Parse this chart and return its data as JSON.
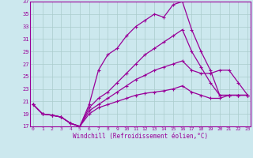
{
  "xlabel": "Windchill (Refroidissement éolien,°C)",
  "bg_color": "#cce8ee",
  "line_color": "#990099",
  "grid_color": "#aacccc",
  "xmin": 0,
  "xmax": 23,
  "ymin": 17,
  "ymax": 37,
  "yticks": [
    17,
    19,
    21,
    23,
    25,
    27,
    29,
    31,
    33,
    35,
    37
  ],
  "xticks": [
    0,
    1,
    2,
    3,
    4,
    5,
    6,
    7,
    8,
    9,
    10,
    11,
    12,
    13,
    14,
    15,
    16,
    17,
    18,
    19,
    20,
    21,
    22,
    23
  ],
  "curves": [
    {
      "x": [
        0,
        1,
        2,
        3,
        4,
        5,
        6,
        7,
        8,
        9,
        10,
        11,
        12,
        13,
        14,
        15,
        16,
        17,
        18,
        19,
        20,
        21,
        22,
        23
      ],
      "y": [
        20.5,
        19.0,
        18.8,
        18.5,
        17.5,
        17.0,
        20.5,
        26.0,
        28.5,
        29.5,
        31.5,
        33.0,
        34.0,
        35.0,
        34.5,
        36.5,
        37.0,
        32.5,
        29.0,
        26.0,
        22.0,
        22.0,
        22.0,
        22.0
      ],
      "marker_x": [
        0,
        1,
        2,
        3,
        4,
        5,
        6,
        7,
        8,
        9,
        10,
        11,
        12,
        13,
        14,
        15,
        16,
        17,
        18,
        19,
        20,
        21,
        22,
        23
      ]
    },
    {
      "x": [
        0,
        1,
        2,
        3,
        4,
        5,
        6,
        7,
        8,
        9,
        10,
        11,
        12,
        13,
        14,
        15,
        16,
        17,
        18,
        19,
        20,
        21,
        22,
        23
      ],
      "y": [
        20.5,
        19.0,
        18.8,
        18.5,
        17.5,
        17.0,
        20.0,
        21.5,
        22.5,
        24.0,
        25.5,
        27.0,
        28.5,
        29.5,
        30.5,
        31.5,
        32.5,
        29.0,
        26.5,
        24.0,
        22.0,
        22.0,
        22.0,
        22.0
      ],
      "marker_x": [
        0,
        1,
        2,
        3,
        4,
        5,
        6,
        7,
        8,
        9,
        10,
        11,
        12,
        13,
        14,
        15,
        16,
        17,
        18,
        19,
        20,
        21,
        22,
        23
      ]
    },
    {
      "x": [
        0,
        1,
        2,
        3,
        4,
        5,
        6,
        7,
        8,
        9,
        10,
        11,
        12,
        13,
        14,
        15,
        16,
        17,
        18,
        19,
        20,
        21,
        22,
        23
      ],
      "y": [
        20.5,
        19.0,
        18.8,
        18.5,
        17.5,
        17.0,
        19.5,
        20.5,
        21.5,
        22.5,
        23.5,
        24.5,
        25.2,
        26.0,
        26.5,
        27.0,
        27.5,
        26.0,
        25.5,
        25.5,
        26.0,
        26.0,
        24.0,
        22.0
      ],
      "marker_x": [
        0,
        1,
        2,
        3,
        4,
        5,
        6,
        7,
        8,
        9,
        10,
        11,
        12,
        13,
        14,
        15,
        16,
        17,
        18,
        19,
        20,
        21,
        22,
        23
      ]
    },
    {
      "x": [
        0,
        1,
        2,
        3,
        4,
        5,
        6,
        7,
        8,
        9,
        10,
        11,
        12,
        13,
        14,
        15,
        16,
        17,
        18,
        19,
        20,
        21,
        22,
        23
      ],
      "y": [
        20.5,
        19.0,
        18.8,
        18.5,
        17.5,
        17.0,
        19.0,
        20.0,
        20.5,
        21.0,
        21.5,
        22.0,
        22.3,
        22.5,
        22.7,
        23.0,
        23.5,
        22.5,
        22.0,
        21.5,
        21.5,
        22.0,
        22.0,
        22.0
      ],
      "marker_x": [
        0,
        1,
        2,
        3,
        4,
        5,
        6,
        7,
        8,
        9,
        10,
        11,
        12,
        13,
        14,
        15,
        16,
        17,
        18,
        19,
        20,
        21,
        22,
        23
      ]
    }
  ]
}
